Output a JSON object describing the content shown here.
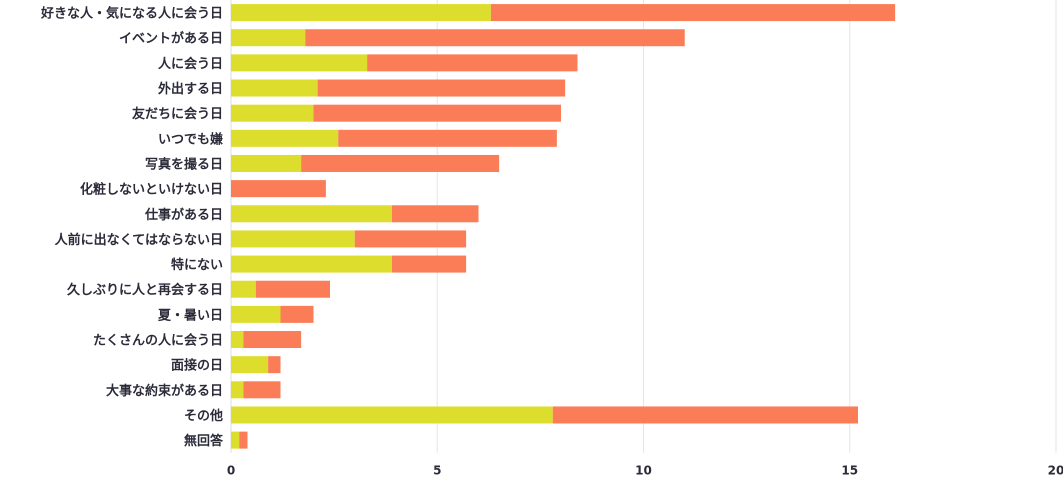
{
  "chart_data": {
    "type": "bar",
    "orientation": "horizontal",
    "stacked": true,
    "categories": [
      "好きな人・気になる人に会う日",
      "イベントがある日",
      "人に会う日",
      "外出する日",
      "友だちに会う日",
      "いつでも嫌",
      "写真を撮る日",
      "化粧しないといけない日",
      "仕事がある日",
      "人前に出なくてはならない日",
      "特にない",
      "久しぶりに人と再会する日",
      "夏・暑い日",
      "たくさんの人に会う日",
      "面接の日",
      "大事な約束がある日",
      "その他",
      "無回答"
    ],
    "series": [
      {
        "color": "#dddd2e",
        "values": [
          6.3,
          1.8,
          3.3,
          2.1,
          2.0,
          2.6,
          1.7,
          0.0,
          3.9,
          3.0,
          3.9,
          0.6,
          1.2,
          0.3,
          0.9,
          0.3,
          7.8,
          0.2
        ]
      },
      {
        "color": "#fa7d57",
        "values": [
          9.8,
          9.2,
          5.1,
          6.0,
          6.0,
          5.3,
          4.8,
          2.3,
          2.1,
          2.7,
          1.8,
          1.8,
          0.8,
          1.4,
          0.3,
          0.9,
          7.4,
          0.2
        ]
      }
    ],
    "xlim": [
      0,
      20
    ],
    "xticks": [
      0,
      5,
      10,
      15,
      20
    ],
    "grid": true,
    "legend": "none"
  }
}
